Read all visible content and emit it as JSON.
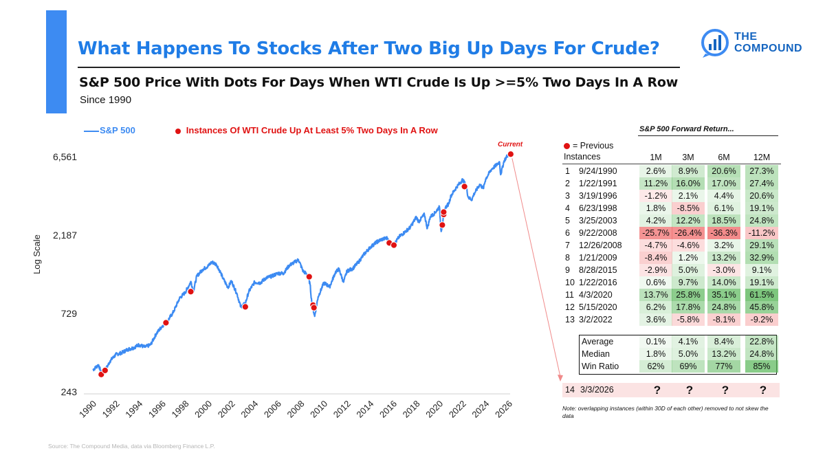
{
  "header": {
    "title": "What Happens To Stocks After Two Big Up Days For Crude?",
    "subtitle": "S&P 500 Price With Dots For Days When WTI Crude Is Up >=5% Two Days In A Row",
    "since": "Since 1990",
    "logo_line1": "THE",
    "logo_line2": "COMPOUND"
  },
  "colors": {
    "accent": "#3d8bf2",
    "title": "#1f7ce6",
    "line": "#3d8bf2",
    "dot": "#e01212",
    "green_strong": "#5cb85c",
    "red_strong": "#f08080"
  },
  "legend": {
    "series_label": "S&P 500",
    "dots_label": "Instances Of WTI Crude Up At Least 5% Two Days In A Row"
  },
  "current_label": "Current",
  "chart_data": {
    "type": "line",
    "title": "S&P 500 Price With Dots For Days When WTI Crude Is Up >=5% Two Days In A Row",
    "xlabel": "",
    "ylabel": "Log Scale",
    "y_scale": "log",
    "ylim": [
      243,
      6561
    ],
    "xlim": [
      1990,
      2026
    ],
    "yticks": [
      243,
      729,
      2187,
      6561
    ],
    "ytick_labels": [
      "243",
      "729",
      "2,187",
      "6,561"
    ],
    "xticks": [
      "1990",
      "1992",
      "1994",
      "1996",
      "1998",
      "2000",
      "2002",
      "2004",
      "2006",
      "2008",
      "2010",
      "2012",
      "2014",
      "2016",
      "2018",
      "2020",
      "2022",
      "2024",
      "2026"
    ],
    "series": [
      {
        "name": "S&P 500",
        "points": [
          [
            1990.0,
            330
          ],
          [
            1990.5,
            355
          ],
          [
            1990.8,
            305
          ],
          [
            1991.1,
            330
          ],
          [
            1991.5,
            375
          ],
          [
            1992.0,
            410
          ],
          [
            1992.5,
            420
          ],
          [
            1993.0,
            440
          ],
          [
            1993.5,
            450
          ],
          [
            1994.0,
            470
          ],
          [
            1994.5,
            455
          ],
          [
            1995.0,
            470
          ],
          [
            1995.5,
            550
          ],
          [
            1996.0,
            610
          ],
          [
            1996.5,
            660
          ],
          [
            1997.0,
            750
          ],
          [
            1997.5,
            900
          ],
          [
            1998.0,
            980
          ],
          [
            1998.5,
            1140
          ],
          [
            1998.7,
            990
          ],
          [
            1999.0,
            1230
          ],
          [
            1999.5,
            1350
          ],
          [
            2000.0,
            1420
          ],
          [
            2000.3,
            1500
          ],
          [
            2000.7,
            1450
          ],
          [
            2001.0,
            1320
          ],
          [
            2001.3,
            1180
          ],
          [
            2001.7,
            1050
          ],
          [
            2002.0,
            1150
          ],
          [
            2002.5,
            950
          ],
          [
            2002.8,
            800
          ],
          [
            2003.2,
            840
          ],
          [
            2003.5,
            990
          ],
          [
            2004.0,
            1130
          ],
          [
            2004.5,
            1120
          ],
          [
            2005.0,
            1200
          ],
          [
            2005.5,
            1230
          ],
          [
            2006.0,
            1280
          ],
          [
            2006.5,
            1280
          ],
          [
            2007.0,
            1430
          ],
          [
            2007.5,
            1500
          ],
          [
            2007.8,
            1550
          ],
          [
            2008.2,
            1320
          ],
          [
            2008.6,
            1250
          ],
          [
            2008.8,
            1100
          ],
          [
            2008.95,
            850
          ],
          [
            2009.2,
            700
          ],
          [
            2009.5,
            920
          ],
          [
            2010.0,
            1120
          ],
          [
            2010.5,
            1060
          ],
          [
            2011.0,
            1300
          ],
          [
            2011.3,
            1360
          ],
          [
            2011.7,
            1130
          ],
          [
            2012.0,
            1320
          ],
          [
            2012.5,
            1370
          ],
          [
            2013.0,
            1500
          ],
          [
            2013.5,
            1680
          ],
          [
            2014.0,
            1840
          ],
          [
            2014.5,
            1970
          ],
          [
            2015.0,
            2060
          ],
          [
            2015.5,
            2100
          ],
          [
            2015.7,
            1950
          ],
          [
            2016.0,
            1880
          ],
          [
            2016.5,
            2130
          ],
          [
            2017.0,
            2280
          ],
          [
            2017.5,
            2450
          ],
          [
            2018.0,
            2820
          ],
          [
            2018.2,
            2640
          ],
          [
            2018.7,
            2920
          ],
          [
            2018.95,
            2400
          ],
          [
            2019.2,
            2820
          ],
          [
            2019.6,
            2980
          ],
          [
            2020.0,
            3250
          ],
          [
            2020.15,
            2300
          ],
          [
            2020.25,
            2550
          ],
          [
            2020.5,
            3200
          ],
          [
            2020.8,
            3400
          ],
          [
            2021.0,
            3800
          ],
          [
            2021.5,
            4300
          ],
          [
            2022.0,
            4750
          ],
          [
            2022.3,
            4400
          ],
          [
            2022.5,
            3700
          ],
          [
            2022.8,
            3600
          ],
          [
            2023.0,
            3900
          ],
          [
            2023.5,
            4450
          ],
          [
            2023.8,
            4200
          ],
          [
            2024.0,
            4800
          ],
          [
            2024.5,
            5500
          ],
          [
            2025.0,
            5900
          ],
          [
            2025.2,
            6100
          ],
          [
            2025.3,
            5100
          ],
          [
            2025.6,
            6200
          ],
          [
            2025.9,
            6700
          ],
          [
            2026.17,
            6800
          ]
        ]
      }
    ],
    "instances": [
      [
        1990.73,
        310
      ],
      [
        1991.06,
        328
      ],
      [
        1998.48,
        990
      ],
      [
        1996.33,
        640
      ],
      [
        2003.2,
        800
      ],
      [
        2008.73,
        1220
      ],
      [
        2009.06,
        820
      ],
      [
        2009.14,
        790
      ],
      [
        2015.66,
        1960
      ],
      [
        2016.06,
        1900
      ],
      [
        2020.25,
        2520
      ],
      [
        2020.37,
        2920
      ],
      [
        2020.37,
        3020
      ],
      [
        2022.17,
        4320
      ],
      [
        2026.17,
        6800
      ]
    ],
    "current_point": [
      2026.17,
      6800
    ]
  },
  "table": {
    "title": "S&P 500 Forward Return...",
    "prev_label_line1": "= Previous",
    "prev_label_line2": "Instances",
    "columns": [
      "1M",
      "3M",
      "6M",
      "12M"
    ],
    "rows": [
      {
        "idx": "1",
        "date": "9/24/1990",
        "values": [
          "2.6%",
          "8.9%",
          "20.6%",
          "27.3%"
        ],
        "nums": [
          2.6,
          8.9,
          20.6,
          27.3
        ]
      },
      {
        "idx": "2",
        "date": "1/22/1991",
        "values": [
          "11.2%",
          "16.0%",
          "17.0%",
          "27.4%"
        ],
        "nums": [
          11.2,
          16.0,
          17.0,
          27.4
        ]
      },
      {
        "idx": "3",
        "date": "3/19/1996",
        "values": [
          "-1.2%",
          "2.1%",
          "4.4%",
          "20.6%"
        ],
        "nums": [
          -1.2,
          2.1,
          4.4,
          20.6
        ]
      },
      {
        "idx": "4",
        "date": "6/23/1998",
        "values": [
          "1.8%",
          "-8.5%",
          "6.1%",
          "19.1%"
        ],
        "nums": [
          1.8,
          -8.5,
          6.1,
          19.1
        ]
      },
      {
        "idx": "5",
        "date": "3/25/2003",
        "values": [
          "4.2%",
          "12.2%",
          "18.5%",
          "24.8%"
        ],
        "nums": [
          4.2,
          12.2,
          18.5,
          24.8
        ]
      },
      {
        "idx": "6",
        "date": "9/22/2008",
        "values": [
          "-25.7%",
          "-26.4%",
          "-36.3%",
          "-11.2%"
        ],
        "nums": [
          -25.7,
          -26.4,
          -36.3,
          -11.2
        ]
      },
      {
        "idx": "7",
        "date": "12/26/2008",
        "values": [
          "-4.7%",
          "-4.6%",
          "3.2%",
          "29.1%"
        ],
        "nums": [
          -4.7,
          -4.6,
          3.2,
          29.1
        ]
      },
      {
        "idx": "8",
        "date": "1/21/2009",
        "values": [
          "-8.4%",
          "1.2%",
          "13.2%",
          "32.9%"
        ],
        "nums": [
          -8.4,
          1.2,
          13.2,
          32.9
        ]
      },
      {
        "idx": "9",
        "date": "8/28/2015",
        "values": [
          "-2.9%",
          "5.0%",
          "-3.0%",
          "9.1%"
        ],
        "nums": [
          -2.9,
          5.0,
          -3.0,
          9.1
        ]
      },
      {
        "idx": "10",
        "date": "1/22/2016",
        "values": [
          "0.6%",
          "9.7%",
          "14.0%",
          "19.1%"
        ],
        "nums": [
          0.6,
          9.7,
          14.0,
          19.1
        ]
      },
      {
        "idx": "11",
        "date": "4/3/2020",
        "values": [
          "13.7%",
          "25.8%",
          "35.1%",
          "61.5%"
        ],
        "nums": [
          13.7,
          25.8,
          35.1,
          61.5
        ]
      },
      {
        "idx": "12",
        "date": "5/15/2020",
        "values": [
          "6.2%",
          "17.8%",
          "24.8%",
          "45.8%"
        ],
        "nums": [
          6.2,
          17.8,
          24.8,
          45.8
        ]
      },
      {
        "idx": "13",
        "date": "3/2/2022",
        "values": [
          "3.6%",
          "-5.8%",
          "-8.1%",
          "-9.2%"
        ],
        "nums": [
          3.6,
          -5.8,
          -8.1,
          -9.2
        ]
      }
    ],
    "summary": [
      {
        "label": "Average",
        "values": [
          "0.1%",
          "4.1%",
          "8.4%",
          "22.8%"
        ],
        "nums": [
          0.1,
          4.1,
          8.4,
          22.8
        ]
      },
      {
        "label": "Median",
        "values": [
          "1.8%",
          "5.0%",
          "13.2%",
          "24.8%"
        ],
        "nums": [
          1.8,
          5.0,
          13.2,
          24.8
        ]
      },
      {
        "label": "Win Ratio",
        "values": [
          "62%",
          "69%",
          "77%",
          "85%"
        ],
        "nums": [
          62,
          69,
          77,
          85
        ]
      }
    ],
    "pending": {
      "idx": "14",
      "date": "3/3/2026",
      "values": [
        "?",
        "?",
        "?",
        "?"
      ]
    },
    "note": "Note: overlapping instances (within 30D of each other) removed to not skew the data"
  },
  "source": "Source: The Compound Media, data via Bloomberg Finance L.P."
}
